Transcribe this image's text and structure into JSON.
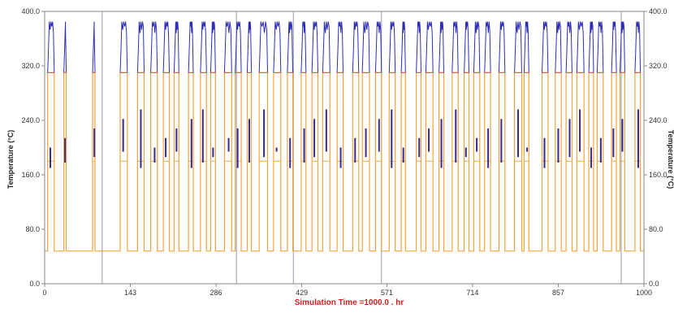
{
  "chart_data": {
    "type": "line",
    "xlabel": "Simulation Time =1000.0 . hr",
    "ylabel_left": "Temperature (°C)",
    "ylabel_right": "Temperature (°C)",
    "xlim": [
      0,
      1000
    ],
    "ylim": [
      0,
      400
    ],
    "x_ticks": [
      0,
      143,
      286,
      429,
      571,
      714,
      857,
      1000
    ],
    "x_tick_labels": [
      "0",
      "143",
      "286",
      "429",
      "571",
      "714",
      "857",
      "1000"
    ],
    "y_ticks": [
      0,
      80,
      160,
      240,
      320,
      400
    ],
    "y_tick_labels": [
      "0.0",
      "80.0",
      "160.0",
      "240.0",
      "320.0",
      "400.0"
    ],
    "grid": false,
    "colors": {
      "upper_series": "#2d2db4",
      "lower_series": "#f2a640",
      "mid_spikes": "#3a2a8a",
      "threshold": "#e05050",
      "xlabel": "#cc2222",
      "axis": "#888888"
    },
    "cycle_levels": {
      "high": 385,
      "plateau": 310,
      "low": 48,
      "mid": 180
    },
    "cycles": [
      [
        5,
        16
      ],
      [
        32,
        36
      ],
      [
        80,
        84
      ],
      [
        126,
        138
      ],
      [
        155,
        166
      ],
      [
        177,
        188
      ],
      [
        198,
        208
      ],
      [
        216,
        224
      ],
      [
        240,
        248
      ],
      [
        260,
        270
      ],
      [
        277,
        285
      ],
      [
        300,
        312
      ],
      [
        318,
        328
      ],
      [
        338,
        345
      ],
      [
        358,
        372
      ],
      [
        382,
        394
      ],
      [
        405,
        414
      ],
      [
        428,
        436
      ],
      [
        446,
        456
      ],
      [
        464,
        476
      ],
      [
        488,
        498
      ],
      [
        514,
        524
      ],
      [
        530,
        542
      ],
      [
        552,
        562
      ],
      [
        575,
        585
      ],
      [
        595,
        602
      ],
      [
        620,
        628
      ],
      [
        636,
        648
      ],
      [
        658,
        666
      ],
      [
        680,
        690
      ],
      [
        700,
        708
      ],
      [
        716,
        726
      ],
      [
        734,
        744
      ],
      [
        758,
        768
      ],
      [
        784,
        796
      ],
      [
        800,
        808
      ],
      [
        830,
        840
      ],
      [
        852,
        862
      ],
      [
        870,
        880
      ],
      [
        888,
        900
      ],
      [
        908,
        916
      ],
      [
        922,
        932
      ],
      [
        946,
        954
      ],
      [
        960,
        968
      ],
      [
        985,
        994
      ]
    ],
    "reference_lines_x": [
      96,
      320,
      415,
      562,
      962
    ]
  }
}
